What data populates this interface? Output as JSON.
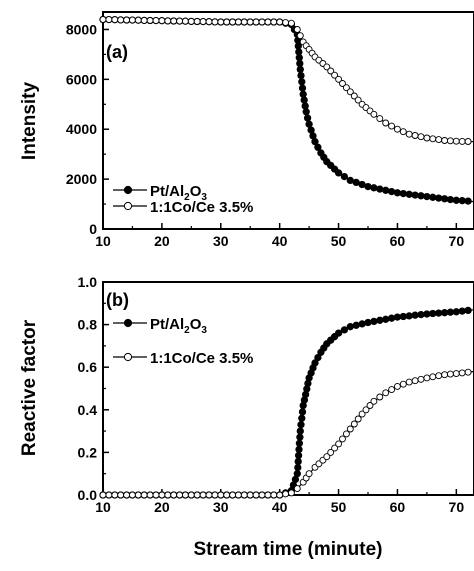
{
  "chart_data": [
    {
      "type": "line",
      "panel_label": "(a)",
      "ylabel": "Intensity",
      "xlabel": "",
      "xlim": [
        10,
        73
      ],
      "ylim": [
        0,
        8700
      ],
      "xticks": [
        "10",
        "20",
        "30",
        "40",
        "50",
        "60",
        "70"
      ],
      "yticks": [
        "0",
        "2000",
        "4000",
        "6000",
        "8000"
      ],
      "ytick_values": [
        0,
        2000,
        4000,
        6000,
        8000
      ],
      "legend_position": "bottom-left",
      "series": [
        {
          "name": "Pt/Al2O3",
          "name_main": "Pt/Al",
          "name_sub1": "2",
          "name_mid": "O",
          "name_sub2": "3",
          "marker": "filled-circle",
          "x": [
            10,
            20,
            30,
            40,
            42,
            43,
            43.5,
            44,
            44.5,
            45,
            46,
            47,
            48,
            50,
            52,
            55,
            58,
            60,
            65,
            70,
            73
          ],
          "y": [
            8400,
            8350,
            8300,
            8300,
            8200,
            7800,
            6400,
            5400,
            4700,
            4200,
            3500,
            3050,
            2700,
            2250,
            1950,
            1700,
            1550,
            1450,
            1300,
            1150,
            1100
          ]
        },
        {
          "name": "1:1Co/Ce 3.5%",
          "marker": "open-circle",
          "x": [
            10,
            20,
            30,
            40,
            42,
            43,
            44,
            45,
            46,
            48,
            50,
            52,
            54,
            56,
            58,
            60,
            62,
            65,
            68,
            70,
            73
          ],
          "y": [
            8400,
            8350,
            8300,
            8300,
            8250,
            8000,
            7500,
            7200,
            6900,
            6500,
            6000,
            5500,
            5000,
            4600,
            4250,
            4000,
            3800,
            3650,
            3550,
            3520,
            3500
          ]
        }
      ]
    },
    {
      "type": "line",
      "panel_label": "(b)",
      "ylabel": "Reactive factor",
      "xlabel": "Stream time (minute)",
      "xlim": [
        10,
        73
      ],
      "ylim": [
        0,
        1.0
      ],
      "xticks": [
        "10",
        "20",
        "30",
        "40",
        "50",
        "60",
        "70"
      ],
      "yticks": [
        "0.0",
        "0.2",
        "0.4",
        "0.6",
        "0.8",
        "1.0"
      ],
      "ytick_values": [
        0,
        0.2,
        0.4,
        0.6,
        0.8,
        1.0
      ],
      "legend_position": "top-left",
      "series": [
        {
          "name": "Pt/Al2O3",
          "name_main": "Pt/Al",
          "name_sub1": "2",
          "name_mid": "O",
          "name_sub2": "3",
          "marker": "filled-circle",
          "x": [
            10,
            20,
            30,
            40,
            42,
            43,
            43.5,
            44,
            45,
            46,
            47,
            48,
            50,
            52,
            55,
            58,
            60,
            65,
            70,
            73
          ],
          "y": [
            0.0,
            0.0,
            0.0,
            0.0,
            0.02,
            0.1,
            0.3,
            0.42,
            0.55,
            0.62,
            0.67,
            0.71,
            0.76,
            0.79,
            0.81,
            0.825,
            0.835,
            0.85,
            0.86,
            0.87
          ]
        },
        {
          "name": "1:1Co/Ce 3.5%",
          "marker": "open-circle",
          "x": [
            10,
            20,
            30,
            40,
            42,
            43,
            44,
            45,
            46,
            48,
            50,
            52,
            54,
            56,
            58,
            60,
            62,
            65,
            68,
            70,
            73
          ],
          "y": [
            0.0,
            0.0,
            0.0,
            0.0,
            0.01,
            0.03,
            0.06,
            0.1,
            0.13,
            0.18,
            0.24,
            0.31,
            0.38,
            0.44,
            0.48,
            0.51,
            0.53,
            0.55,
            0.565,
            0.57,
            0.58
          ]
        }
      ]
    }
  ]
}
